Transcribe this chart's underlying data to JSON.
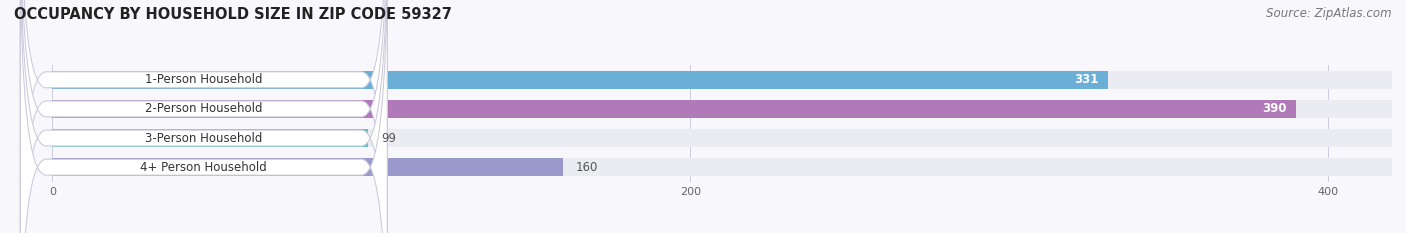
{
  "title": "OCCUPANCY BY HOUSEHOLD SIZE IN ZIP CODE 59327",
  "source": "Source: ZipAtlas.com",
  "categories": [
    "1-Person Household",
    "2-Person Household",
    "3-Person Household",
    "4+ Person Household"
  ],
  "values": [
    331,
    390,
    99,
    160
  ],
  "bar_colors": [
    "#6baed6",
    "#b07ab8",
    "#66c2c2",
    "#9999cc"
  ],
  "bar_bg_color": "#ebebf2",
  "label_bg_color": "#ffffff",
  "label_border_color": "#ddddee",
  "xlim": [
    0,
    420
  ],
  "data_max": 400,
  "xticks": [
    0,
    200,
    400
  ],
  "background_color": "#f8f8fc",
  "title_fontsize": 10.5,
  "source_fontsize": 8.5,
  "label_fontsize": 8.5,
  "value_fontsize": 8.5,
  "value_colors_inside": [
    true,
    true,
    false,
    false
  ]
}
